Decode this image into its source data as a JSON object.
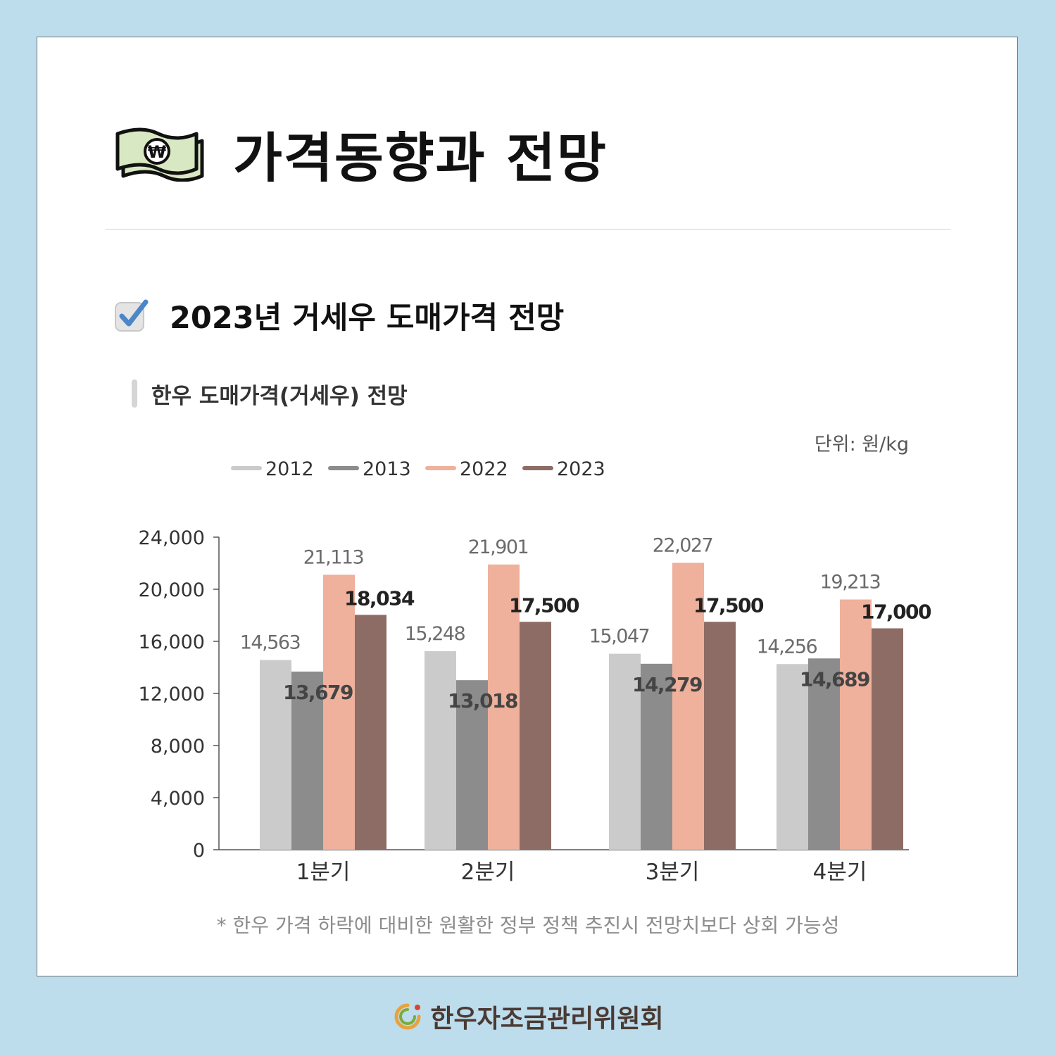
{
  "header": {
    "title": "가격동향과 전망"
  },
  "section": {
    "title": "2023년 거세우 도매가격 전망"
  },
  "subsection": {
    "title": "한우 도매가격(거세우) 전망"
  },
  "unit_label": "단위: 원/kg",
  "footnote": "* 한우 가격 하락에 대비한 원활한 정부 정책 추진시 전망치보다 상회 가능성",
  "footer": {
    "org": "한우자조금관리위원회"
  },
  "colors": {
    "background": "#bddcec",
    "s2012": "#cbcbcb",
    "s2013": "#8c8c8c",
    "s2022": "#efb19c",
    "s2023": "#8e6c66"
  },
  "chart_data": {
    "type": "bar",
    "categories": [
      "1분기",
      "2분기",
      "3분기",
      "4분기"
    ],
    "series": [
      {
        "name": "2012",
        "values": [
          14563,
          15248,
          15047,
          14256
        ],
        "labels": [
          "14,563",
          "15,248",
          "15,047",
          "14,256"
        ]
      },
      {
        "name": "2013",
        "values": [
          13679,
          13018,
          14279,
          14689
        ],
        "labels": [
          "13,679",
          "13,018",
          "14,279",
          "14,689"
        ]
      },
      {
        "name": "2022",
        "values": [
          21113,
          21901,
          22027,
          19213
        ],
        "labels": [
          "21,113",
          "21,901",
          "22,027",
          "19,213"
        ]
      },
      {
        "name": "2023",
        "values": [
          18034,
          17500,
          17500,
          17000
        ],
        "labels": [
          "18,034",
          "17,500",
          "17,500",
          "17,000"
        ]
      }
    ],
    "yticks": [
      "0",
      "4,000",
      "8,000",
      "12,000",
      "16,000",
      "20,000",
      "24,000"
    ],
    "ylim": [
      0,
      24000
    ],
    "legend_position": "top-left",
    "title": "",
    "xlabel": "",
    "ylabel": ""
  }
}
